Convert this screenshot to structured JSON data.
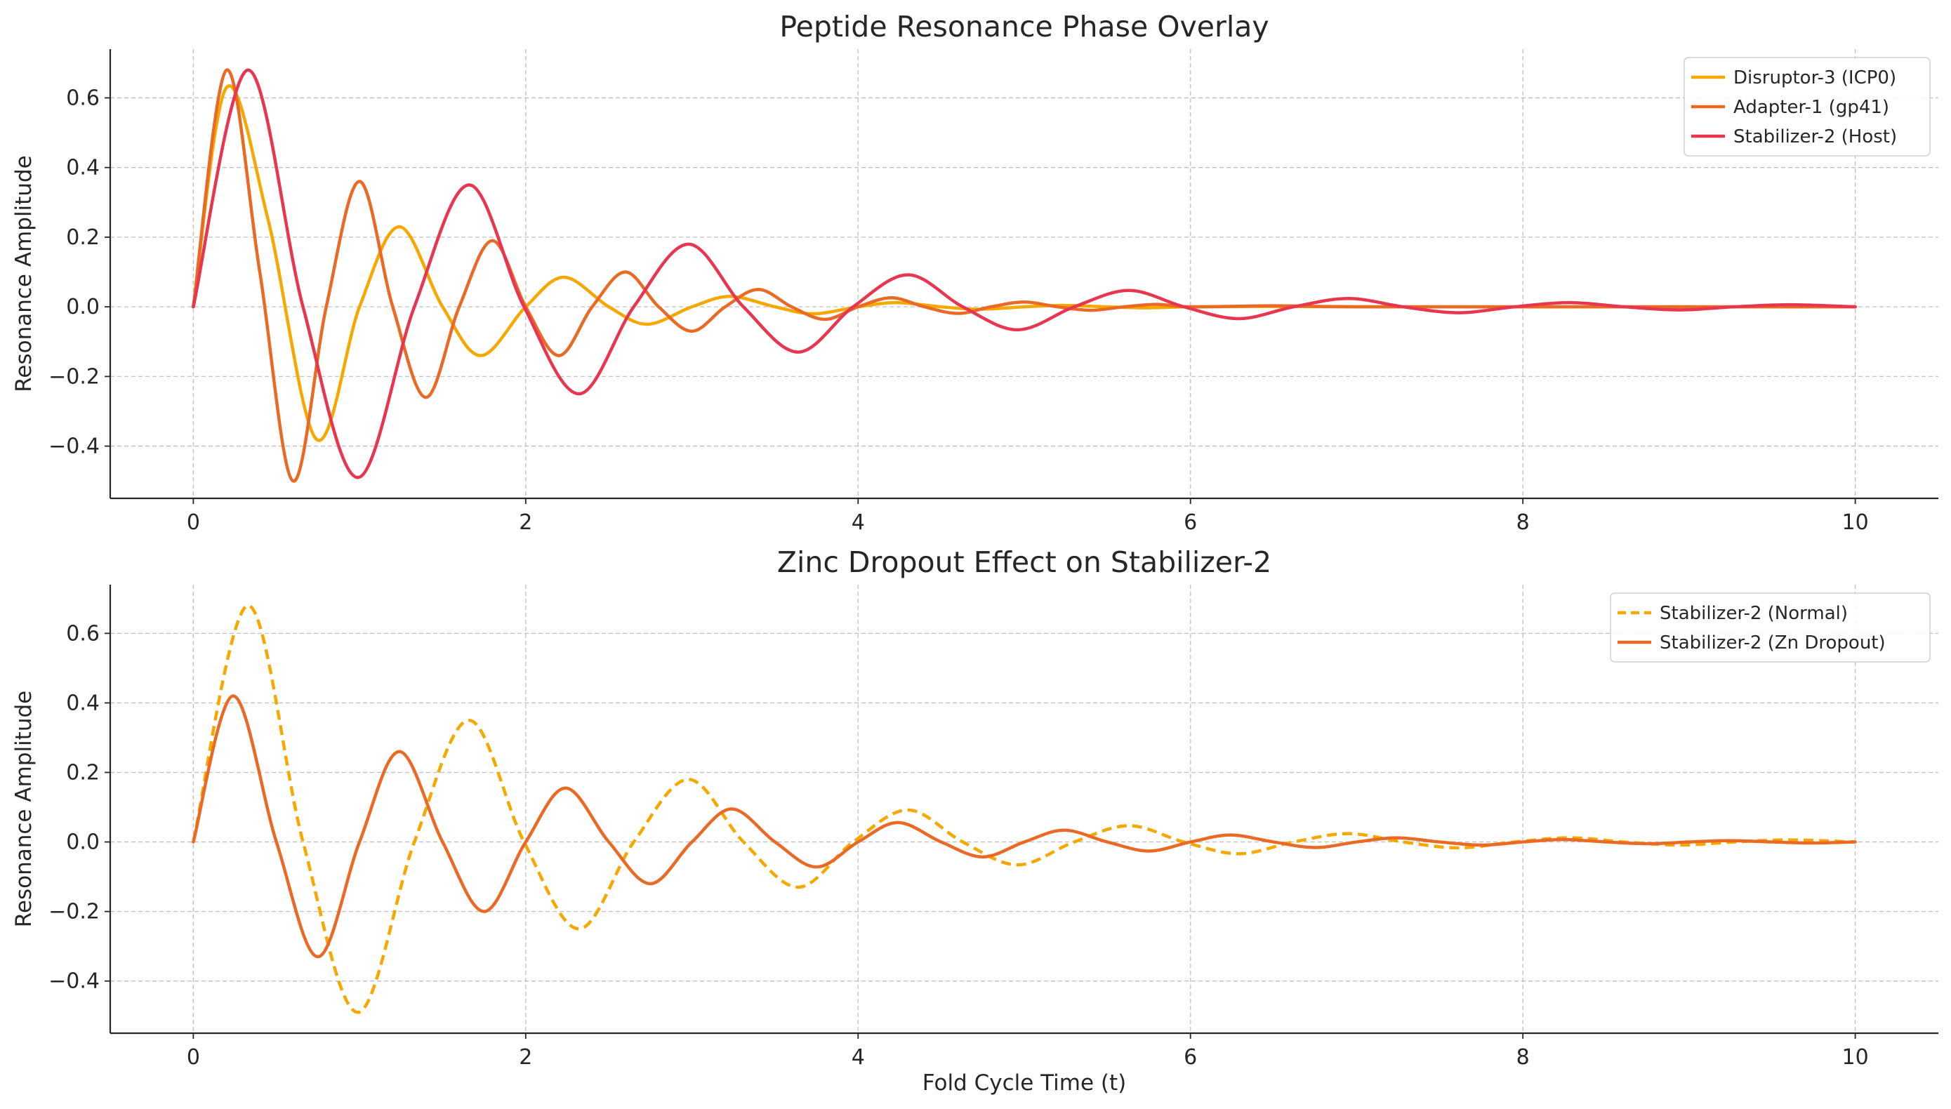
{
  "chart_data": [
    {
      "type": "line",
      "title": "Peptide Resonance Phase Overlay",
      "xlabel": "",
      "ylabel": "Resonance Amplitude",
      "xlim": [
        -0.5,
        10.5
      ],
      "ylim": [
        -0.55,
        0.74
      ],
      "x_ticks": [
        0,
        2,
        4,
        6,
        8,
        10
      ],
      "x_tick_labels": [
        "0",
        "2",
        "4",
        "6",
        "8",
        "10"
      ],
      "y_ticks": [
        -0.4,
        -0.2,
        0.0,
        0.2,
        0.4,
        0.6
      ],
      "y_tick_labels": [
        "−0.4",
        "−0.2",
        "0.0",
        "0.2",
        "0.4",
        "0.6"
      ],
      "grid": true,
      "legend_position": "top-right",
      "series": [
        {
          "name": "Disruptor-3 (ICP0)",
          "color": "#F6A800",
          "dash": "solid",
          "points": [
            [
              0,
              0
            ],
            [
              0.2,
              0.63
            ],
            [
              0.45,
              0.25
            ],
            [
              0.74,
              -0.38
            ],
            [
              1.0,
              0.0
            ],
            [
              1.24,
              0.23
            ],
            [
              1.5,
              0.0
            ],
            [
              1.73,
              -0.14
            ],
            [
              2.0,
              0.0
            ],
            [
              2.23,
              0.085
            ],
            [
              2.5,
              0.0
            ],
            [
              2.73,
              -0.05
            ],
            [
              3.0,
              0.0
            ],
            [
              3.23,
              0.03
            ],
            [
              3.5,
              0.0
            ],
            [
              3.73,
              -0.02
            ],
            [
              4.0,
              0.0
            ],
            [
              4.23,
              0.012
            ],
            [
              4.5,
              0.0
            ],
            [
              4.73,
              -0.007
            ],
            [
              5.0,
              0.0
            ],
            [
              5.23,
              0.004
            ],
            [
              5.5,
              0.0
            ],
            [
              5.73,
              -0.003
            ],
            [
              6.0,
              0.0
            ],
            [
              6.5,
              0.001
            ],
            [
              7.0,
              0.0
            ],
            [
              8.0,
              0.0
            ],
            [
              9.0,
              0.0
            ],
            [
              10.0,
              0.0
            ]
          ]
        },
        {
          "name": "Adapter-1 (gp41)",
          "color": "#EA6A25",
          "dash": "solid",
          "points": [
            [
              0,
              0
            ],
            [
              0.2,
              0.68
            ],
            [
              0.4,
              0.1
            ],
            [
              0.6,
              -0.5
            ],
            [
              0.8,
              0.0
            ],
            [
              1.0,
              0.36
            ],
            [
              1.2,
              0.0
            ],
            [
              1.4,
              -0.26
            ],
            [
              1.6,
              0.0
            ],
            [
              1.8,
              0.19
            ],
            [
              2.0,
              0.0
            ],
            [
              2.2,
              -0.14
            ],
            [
              2.4,
              0.0
            ],
            [
              2.6,
              0.1
            ],
            [
              2.8,
              0.0
            ],
            [
              3.0,
              -0.07
            ],
            [
              3.2,
              0.0
            ],
            [
              3.4,
              0.05
            ],
            [
              3.6,
              0.0
            ],
            [
              3.8,
              -0.036
            ],
            [
              4.0,
              0.0
            ],
            [
              4.2,
              0.026
            ],
            [
              4.4,
              0.0
            ],
            [
              4.6,
              -0.019
            ],
            [
              4.8,
              0.0
            ],
            [
              5.0,
              0.014
            ],
            [
              5.2,
              0.0
            ],
            [
              5.4,
              -0.01
            ],
            [
              5.6,
              0.0
            ],
            [
              5.8,
              0.007
            ],
            [
              6.0,
              0.0
            ],
            [
              6.5,
              0.003
            ],
            [
              7.0,
              0.0
            ],
            [
              8.0,
              0.0
            ],
            [
              9.0,
              0.0
            ],
            [
              10.0,
              0.0
            ]
          ]
        },
        {
          "name": "Stabilizer-2 (Host)",
          "color": "#E8364F",
          "dash": "solid",
          "points": [
            [
              0,
              0
            ],
            [
              0.33,
              0.68
            ],
            [
              0.66,
              0.0
            ],
            [
              0.99,
              -0.49
            ],
            [
              1.33,
              0.0
            ],
            [
              1.66,
              0.35
            ],
            [
              1.99,
              0.0
            ],
            [
              2.32,
              -0.25
            ],
            [
              2.65,
              0.0
            ],
            [
              2.98,
              0.18
            ],
            [
              3.31,
              0.0
            ],
            [
              3.64,
              -0.13
            ],
            [
              3.97,
              0.0
            ],
            [
              4.3,
              0.092
            ],
            [
              4.63,
              0.0
            ],
            [
              4.96,
              -0.066
            ],
            [
              5.3,
              0.0
            ],
            [
              5.63,
              0.047
            ],
            [
              5.96,
              0.0
            ],
            [
              6.29,
              -0.034
            ],
            [
              6.62,
              0.0
            ],
            [
              6.95,
              0.024
            ],
            [
              7.28,
              0.0
            ],
            [
              7.61,
              -0.017
            ],
            [
              7.95,
              0.0
            ],
            [
              8.28,
              0.012
            ],
            [
              8.61,
              0.0
            ],
            [
              8.94,
              -0.009
            ],
            [
              9.27,
              0.0
            ],
            [
              9.6,
              0.006
            ],
            [
              10.0,
              0.0
            ]
          ]
        }
      ]
    },
    {
      "type": "line",
      "title": "Zinc Dropout Effect on Stabilizer-2",
      "xlabel": "Fold Cycle Time (t)",
      "ylabel": "Resonance Amplitude",
      "xlim": [
        -0.5,
        10.5
      ],
      "ylim": [
        -0.55,
        0.74
      ],
      "x_ticks": [
        0,
        2,
        4,
        6,
        8,
        10
      ],
      "x_tick_labels": [
        "0",
        "2",
        "4",
        "6",
        "8",
        "10"
      ],
      "y_ticks": [
        -0.4,
        -0.2,
        0.0,
        0.2,
        0.4,
        0.6
      ],
      "y_tick_labels": [
        "−0.4",
        "−0.2",
        "0.0",
        "0.2",
        "0.4",
        "0.6"
      ],
      "grid": true,
      "legend_position": "top-right",
      "series": [
        {
          "name": "Stabilizer-2 (Normal)",
          "color": "#F6A800",
          "dash": "dashed",
          "points": [
            [
              0,
              0
            ],
            [
              0.33,
              0.68
            ],
            [
              0.66,
              0.0
            ],
            [
              0.99,
              -0.49
            ],
            [
              1.33,
              0.0
            ],
            [
              1.66,
              0.35
            ],
            [
              1.99,
              0.0
            ],
            [
              2.32,
              -0.25
            ],
            [
              2.65,
              0.0
            ],
            [
              2.98,
              0.18
            ],
            [
              3.31,
              0.0
            ],
            [
              3.64,
              -0.13
            ],
            [
              3.97,
              0.0
            ],
            [
              4.3,
              0.092
            ],
            [
              4.63,
              0.0
            ],
            [
              4.96,
              -0.066
            ],
            [
              5.3,
              0.0
            ],
            [
              5.63,
              0.047
            ],
            [
              5.96,
              0.0
            ],
            [
              6.29,
              -0.034
            ],
            [
              6.62,
              0.0
            ],
            [
              6.95,
              0.024
            ],
            [
              7.28,
              0.0
            ],
            [
              7.61,
              -0.017
            ],
            [
              7.95,
              0.0
            ],
            [
              8.28,
              0.012
            ],
            [
              8.61,
              0.0
            ],
            [
              8.94,
              -0.009
            ],
            [
              9.27,
              0.0
            ],
            [
              9.6,
              0.006
            ],
            [
              10.0,
              0.0
            ]
          ]
        },
        {
          "name": "Stabilizer-2 (Zn Dropout)",
          "color": "#EA6A25",
          "dash": "solid",
          "points": [
            [
              0,
              0
            ],
            [
              0.24,
              0.42
            ],
            [
              0.5,
              0.0
            ],
            [
              0.75,
              -0.33
            ],
            [
              1.0,
              0.0
            ],
            [
              1.24,
              0.26
            ],
            [
              1.5,
              0.0
            ],
            [
              1.75,
              -0.2
            ],
            [
              2.0,
              0.0
            ],
            [
              2.24,
              0.155
            ],
            [
              2.5,
              0.0
            ],
            [
              2.75,
              -0.12
            ],
            [
              3.0,
              0.0
            ],
            [
              3.24,
              0.095
            ],
            [
              3.5,
              0.0
            ],
            [
              3.75,
              -0.072
            ],
            [
              4.0,
              0.0
            ],
            [
              4.24,
              0.056
            ],
            [
              4.5,
              0.0
            ],
            [
              4.75,
              -0.043
            ],
            [
              5.0,
              0.0
            ],
            [
              5.24,
              0.034
            ],
            [
              5.5,
              0.0
            ],
            [
              5.75,
              -0.026
            ],
            [
              6.0,
              0.0
            ],
            [
              6.24,
              0.02
            ],
            [
              6.5,
              0.0
            ],
            [
              6.75,
              -0.016
            ],
            [
              7.0,
              0.0
            ],
            [
              7.24,
              0.012
            ],
            [
              7.5,
              0.0
            ],
            [
              7.75,
              -0.009
            ],
            [
              8.0,
              0.0
            ],
            [
              8.24,
              0.007
            ],
            [
              8.5,
              0.0
            ],
            [
              8.75,
              -0.005
            ],
            [
              9.0,
              0.0
            ],
            [
              9.24,
              0.004
            ],
            [
              9.5,
              0.0
            ],
            [
              9.75,
              -0.003
            ],
            [
              10.0,
              0.0
            ]
          ]
        }
      ]
    }
  ]
}
